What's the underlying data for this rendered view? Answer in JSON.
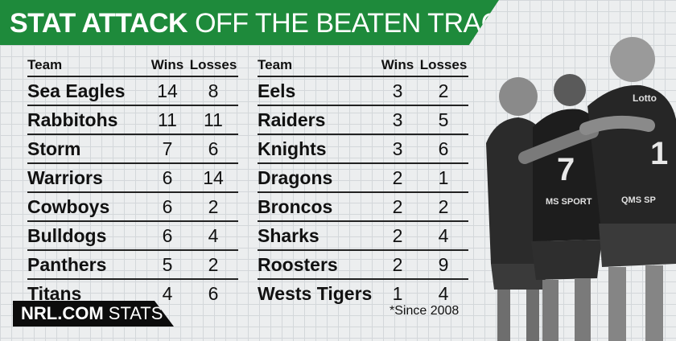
{
  "header": {
    "title_bold": "STAT ATTACK",
    "title_light": "OFF THE BEATEN TRACK"
  },
  "columns": {
    "team": "Team",
    "wins": "Wins",
    "losses": "Losses"
  },
  "left_table": [
    {
      "team": "Sea Eagles",
      "wins": "14",
      "losses": "8"
    },
    {
      "team": "Rabbitohs",
      "wins": "11",
      "losses": "11"
    },
    {
      "team": "Storm",
      "wins": "7",
      "losses": "6"
    },
    {
      "team": "Warriors",
      "wins": "6",
      "losses": "14"
    },
    {
      "team": "Cowboys",
      "wins": "6",
      "losses": "2"
    },
    {
      "team": "Bulldogs",
      "wins": "6",
      "losses": "4"
    },
    {
      "team": "Panthers",
      "wins": "5",
      "losses": "2"
    },
    {
      "team": "Titans",
      "wins": "4",
      "losses": "6"
    }
  ],
  "right_table": [
    {
      "team": "Eels",
      "wins": "3",
      "losses": "2"
    },
    {
      "team": "Raiders",
      "wins": "3",
      "losses": "5"
    },
    {
      "team": "Knights",
      "wins": "3",
      "losses": "6"
    },
    {
      "team": "Dragons",
      "wins": "2",
      "losses": "1"
    },
    {
      "team": "Broncos",
      "wins": "2",
      "losses": "2"
    },
    {
      "team": "Sharks",
      "wins": "2",
      "losses": "4"
    },
    {
      "team": "Roosters",
      "wins": "2",
      "losses": "9"
    },
    {
      "team": "Wests Tigers",
      "wins": "1",
      "losses": "4"
    }
  ],
  "footer": {
    "brand_bold": "NRL.COM",
    "brand_light": "STATS",
    "note": "*Since 2008"
  },
  "photo": {
    "jersey_number_front": "7",
    "jersey_number_back": "1",
    "sponsor_1": "MS SPORT",
    "sponsor_2": "QMS SP",
    "sponsor_3": "Lotto"
  },
  "colors": {
    "banner": "#1e8a3b",
    "footer": "#0c0c0c",
    "text": "#111111"
  }
}
